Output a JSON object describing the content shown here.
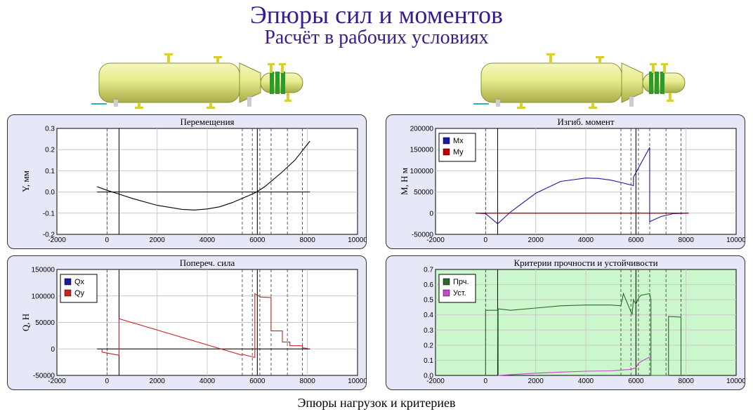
{
  "header": {
    "title": "Эпюры сил и моментов",
    "subtitle": "Расчёт в рабочих условиях"
  },
  "caption": "Эпюры нагрузок и критериев",
  "chart_data": [
    {
      "id": "displacement",
      "type": "line",
      "title": "Перемещения",
      "ylabel": "Y, мм",
      "xlabel": "",
      "xlim": [
        -2000,
        10000
      ],
      "ylim": [
        -0.2,
        0.3
      ],
      "xticks": [
        "-2000",
        "0",
        "2000",
        "4000",
        "6000",
        "8000",
        "10000"
      ],
      "yticks": [
        "-0.2",
        "-0.1",
        "0.0",
        "0.1",
        "0.2",
        "0.3"
      ],
      "grid": true,
      "background": "#ffffff",
      "dashed_lines": [
        0,
        5400,
        5800,
        6100,
        6550,
        7200,
        7800
      ],
      "solid_lines": [
        480,
        6000
      ],
      "baseline": [
        -400,
        8100
      ],
      "series": [
        {
          "color": "#000000",
          "x": [
            -400,
            0,
            480,
            1000,
            2000,
            3000,
            3500,
            4000,
            4500,
            5000,
            5500,
            5800,
            6000,
            6300,
            6550,
            7000,
            7500,
            8100
          ],
          "y": [
            0.025,
            0.008,
            -0.01,
            -0.03,
            -0.063,
            -0.082,
            -0.085,
            -0.08,
            -0.07,
            -0.05,
            -0.025,
            -0.01,
            0.002,
            0.025,
            0.05,
            0.095,
            0.15,
            0.24
          ]
        }
      ]
    },
    {
      "id": "bending-moment",
      "type": "line",
      "title": "Изгиб. момент",
      "ylabel": "M, Н м",
      "xlabel": "",
      "xlim": [
        -2000,
        10000
      ],
      "ylim": [
        -50000,
        200000
      ],
      "xticks": [
        "-2000",
        "0",
        "2000",
        "4000",
        "6000",
        "8000",
        "10000"
      ],
      "yticks": [
        "-50000",
        "0",
        "50000",
        "100000",
        "150000",
        "200000"
      ],
      "grid": true,
      "background": "#ffffff",
      "dashed_lines": [
        0,
        5400,
        5800,
        6100,
        6550,
        7200,
        7800
      ],
      "solid_lines": [
        480,
        6000
      ],
      "baseline": [
        -400,
        8100
      ],
      "legend_position": "top-left",
      "series": [
        {
          "name": "Mx",
          "color": "#1a1aa0",
          "x": [
            -400,
            0,
            480,
            1000,
            2000,
            3000,
            4000,
            4500,
            5000,
            5500,
            5900,
            5900,
            6550,
            6550,
            7000,
            7500,
            8100
          ],
          "y": [
            0,
            -1000,
            -25000,
            3000,
            47000,
            75000,
            83000,
            82000,
            78000,
            71000,
            65000,
            85000,
            155000,
            -20000,
            -8000,
            -1000,
            0
          ]
        },
        {
          "name": "My",
          "color": "#c00000",
          "x": [
            -400,
            8100
          ],
          "y": [
            0,
            0
          ]
        }
      ]
    },
    {
      "id": "shear-force",
      "type": "line",
      "title": "Попереч. сила",
      "ylabel": "Q, Н",
      "xlabel": "",
      "xlim": [
        -2000,
        10000
      ],
      "ylim": [
        -50000,
        150000
      ],
      "xticks": [
        "-2000",
        "0",
        "2000",
        "4000",
        "6000",
        "8000",
        "10000"
      ],
      "yticks": [
        "-50000",
        "0",
        "50000",
        "100000",
        "150000"
      ],
      "grid": true,
      "background": "#ffffff",
      "dashed_lines": [
        0,
        5400,
        5800,
        6100,
        6550,
        7200,
        7800
      ],
      "solid_lines": [
        480,
        6000
      ],
      "baseline": [
        -400,
        8100
      ],
      "legend_position": "top-left",
      "series": [
        {
          "name": "Qx",
          "color": "#1a1aa0",
          "x": [],
          "y": []
        },
        {
          "name": "Qy",
          "color": "#cc2222",
          "x": [
            -200,
            -200,
            480,
            480,
            5400,
            5400,
            5800,
            5900,
            5900,
            6100,
            6100,
            6550,
            6550,
            7000,
            7000,
            7300,
            7300,
            7800,
            7800,
            8000
          ],
          "y": [
            0,
            -6000,
            -12000,
            57000,
            -12000,
            -10000,
            -15000,
            -16000,
            104000,
            99000,
            98000,
            97000,
            34000,
            34000,
            13000,
            13000,
            6000,
            6000,
            2000,
            1000
          ]
        }
      ]
    },
    {
      "id": "strength-criteria",
      "type": "line",
      "title": "Критерии прочности и устойчивости",
      "ylabel": "",
      "xlabel": "",
      "xlim": [
        -2000,
        10000
      ],
      "ylim": [
        0,
        0.7
      ],
      "xticks": [
        "-2000",
        "0",
        "2000",
        "4000",
        "6000",
        "8000",
        "10000"
      ],
      "yticks": [
        "0.0",
        "0.1",
        "0.2",
        "0.3",
        "0.4",
        "0.5",
        "0.6",
        "0.7"
      ],
      "grid": true,
      "background": "#ccf7cc",
      "dashed_lines": [
        0,
        5400,
        5800,
        6100,
        6550,
        7200,
        7800
      ],
      "solid_lines": [
        480,
        6000
      ],
      "legend_position": "top-left",
      "series": [
        {
          "name": "Прч.",
          "color": "#2a6a2a",
          "x": [
            0,
            0,
            480,
            500,
            500,
            1000,
            2000,
            3000,
            4000,
            5000,
            5400,
            5500,
            5800,
            5850,
            5900,
            6000,
            6100,
            6200,
            6550,
            6600,
            6600,
            7300,
            7300,
            7800,
            7800
          ],
          "y": [
            0,
            0.43,
            0.43,
            0.0,
            0.44,
            0.43,
            0.445,
            0.46,
            0.465,
            0.465,
            0.46,
            0.54,
            0.42,
            0.405,
            0.5,
            0.47,
            0.51,
            0.53,
            0.54,
            0.5,
            0.0,
            0.0,
            0.39,
            0.385,
            0.0
          ],
          "breaks": [
            20,
            21
          ]
        },
        {
          "name": "Уст.",
          "color": "#cc44cc",
          "x": [
            500,
            1000,
            2000,
            3000,
            4000,
            5000,
            5400,
            5800,
            6000,
            6100,
            6300,
            6600
          ],
          "y": [
            0.0,
            0.005,
            0.015,
            0.022,
            0.028,
            0.03,
            0.035,
            0.04,
            0.05,
            0.08,
            0.1,
            0.125
          ]
        }
      ]
    }
  ]
}
